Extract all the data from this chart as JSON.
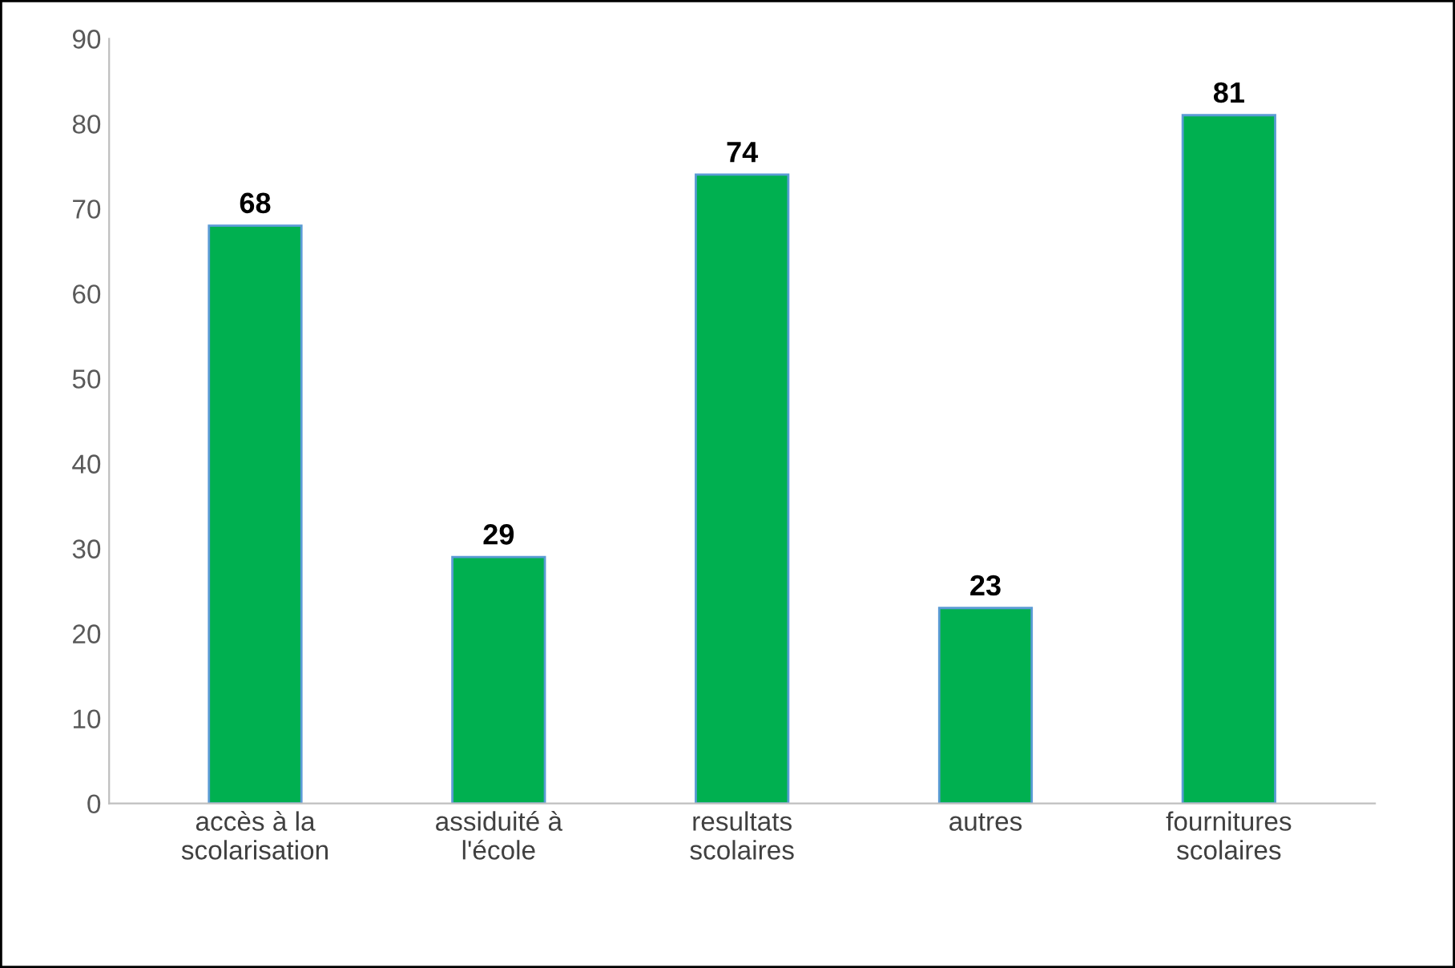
{
  "chart_data": {
    "type": "bar",
    "categories": [
      "accès à la\nscolarisation",
      "assiduité à\nl'école",
      "resultats\nscolaires",
      "autres",
      "fournitures\nscolaires"
    ],
    "values": [
      68,
      29,
      74,
      23,
      81
    ],
    "color": "#00b050",
    "ylim": [
      0,
      90
    ],
    "yticks": [
      0,
      10,
      20,
      30,
      40,
      50,
      60,
      70,
      80,
      90
    ],
    "data_labels": true,
    "grid": false,
    "legend": false
  }
}
